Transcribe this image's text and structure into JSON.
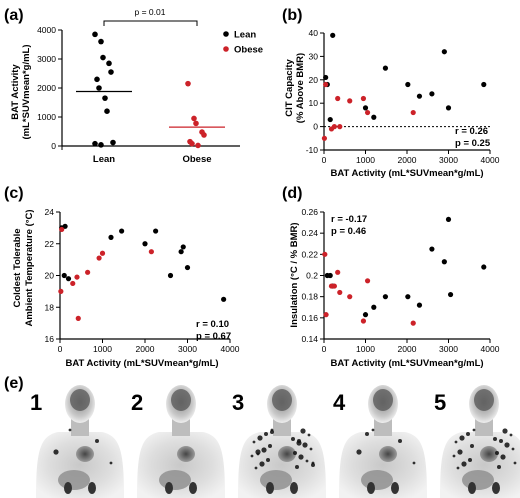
{
  "chart_data": [
    {
      "panel": "(a)",
      "type": "scatter",
      "xlabel": "",
      "ylabel": [
        "BAT Activity",
        "(mL*SUVmean*g/mL)"
      ],
      "ylim": [
        0,
        4000
      ],
      "yticks": [
        0,
        1000,
        2000,
        3000,
        4000
      ],
      "categories": [
        "Lean",
        "Obese"
      ],
      "legend": [
        {
          "name": "Lean",
          "color": "#000000"
        },
        {
          "name": "Obese",
          "color": "#cc2229"
        }
      ],
      "legend_position": "top-right",
      "significance": "p = 0.01",
      "series": [
        {
          "name": "Lean",
          "color": "#000000",
          "mean": 1880,
          "values": [
            3850,
            3600,
            3050,
            2850,
            2550,
            2300,
            2000,
            1650,
            1200,
            120,
            80,
            40
          ]
        },
        {
          "name": "Obese",
          "color": "#cc2229",
          "mean": 650,
          "values": [
            2150,
            950,
            780,
            480,
            380,
            150,
            80,
            20
          ]
        }
      ]
    },
    {
      "panel": "(b)",
      "type": "scatter",
      "xlabel": "BAT Activity (mL*SUVmean*g/mL)",
      "ylabel": [
        "CIT Capacity",
        "(% Above BMR)"
      ],
      "xlim": [
        0,
        4000
      ],
      "ylim": [
        -10,
        40
      ],
      "xticks": [
        0,
        1000,
        2000,
        3000,
        4000
      ],
      "yticks": [
        -10,
        0,
        10,
        20,
        30,
        40
      ],
      "reference_line": 0,
      "stats": [
        "r = 0.26",
        "p = 0.25"
      ],
      "points_black": [
        [
          40,
          21
        ],
        [
          80,
          18
        ],
        [
          150,
          3
        ],
        [
          210,
          39
        ],
        [
          1000,
          8
        ],
        [
          1200,
          4
        ],
        [
          1480,
          25
        ],
        [
          2020,
          18
        ],
        [
          2300,
          13
        ],
        [
          2600,
          14
        ],
        [
          2900,
          32
        ],
        [
          3000,
          8
        ],
        [
          3850,
          18
        ]
      ],
      "points_red": [
        [
          10,
          -5
        ],
        [
          40,
          18
        ],
        [
          180,
          -1
        ],
        [
          250,
          0
        ],
        [
          330,
          12
        ],
        [
          380,
          0
        ],
        [
          620,
          11
        ],
        [
          950,
          12
        ],
        [
          1050,
          6
        ],
        [
          2150,
          6
        ]
      ]
    },
    {
      "panel": "(c)",
      "type": "scatter",
      "xlabel": "BAT Activity (mL*SUVmean*g/mL)",
      "ylabel": [
        "Coldest Tolerable",
        "Ambient Temperature (°C)"
      ],
      "xlim": [
        0,
        4000
      ],
      "ylim": [
        16,
        24
      ],
      "xticks": [
        0,
        1000,
        2000,
        3000,
        4000
      ],
      "yticks": [
        16,
        18,
        20,
        22,
        24
      ],
      "stats": [
        "r = 0.10",
        "p = 0.67"
      ],
      "points_black": [
        [
          40,
          23
        ],
        [
          100,
          20
        ],
        [
          120,
          23.1
        ],
        [
          200,
          19.8
        ],
        [
          1200,
          22.4
        ],
        [
          1450,
          22.8
        ],
        [
          2000,
          22
        ],
        [
          2250,
          22.8
        ],
        [
          2600,
          20
        ],
        [
          2850,
          21.5
        ],
        [
          2900,
          21.8
        ],
        [
          3000,
          20.5
        ],
        [
          3850,
          18.5
        ]
      ],
      "points_red": [
        [
          20,
          19
        ],
        [
          40,
          22.9
        ],
        [
          300,
          19.5
        ],
        [
          400,
          19.9
        ],
        [
          430,
          17.3
        ],
        [
          650,
          20.2
        ],
        [
          920,
          21.1
        ],
        [
          1000,
          21.4
        ],
        [
          2150,
          21.5
        ]
      ]
    },
    {
      "panel": "(d)",
      "type": "scatter",
      "xlabel": "BAT Activity (mL*SUVmean*g/mL)",
      "ylabel": [
        "Insulation (°C / % BMR)"
      ],
      "xlim": [
        0,
        4000
      ],
      "ylim": [
        0.14,
        0.26
      ],
      "xticks": [
        0,
        1000,
        2000,
        3000,
        4000
      ],
      "yticks": [
        0.14,
        0.16,
        0.18,
        0.2,
        0.22,
        0.24,
        0.26
      ],
      "stats": [
        "r = -0.17",
        "p = 0.46"
      ],
      "points_black": [
        [
          80,
          0.2
        ],
        [
          150,
          0.2
        ],
        [
          210,
          0.19
        ],
        [
          1000,
          0.163
        ],
        [
          1200,
          0.17
        ],
        [
          1480,
          0.18
        ],
        [
          2020,
          0.18
        ],
        [
          2300,
          0.172
        ],
        [
          2600,
          0.225
        ],
        [
          2900,
          0.213
        ],
        [
          3000,
          0.253
        ],
        [
          3050,
          0.182
        ],
        [
          3850,
          0.208
        ]
      ],
      "points_red": [
        [
          20,
          0.22
        ],
        [
          50,
          0.163
        ],
        [
          180,
          0.19
        ],
        [
          250,
          0.19
        ],
        [
          330,
          0.203
        ],
        [
          380,
          0.184
        ],
        [
          620,
          0.18
        ],
        [
          950,
          0.157
        ],
        [
          1050,
          0.195
        ],
        [
          2150,
          0.155
        ]
      ]
    }
  ],
  "figure": {
    "panel_e_label": "(e)",
    "scan_labels": [
      "1",
      "2",
      "3",
      "4",
      "5"
    ],
    "colors": {
      "lean": "#000000",
      "obese": "#cc2229",
      "axis": "#000000"
    }
  }
}
